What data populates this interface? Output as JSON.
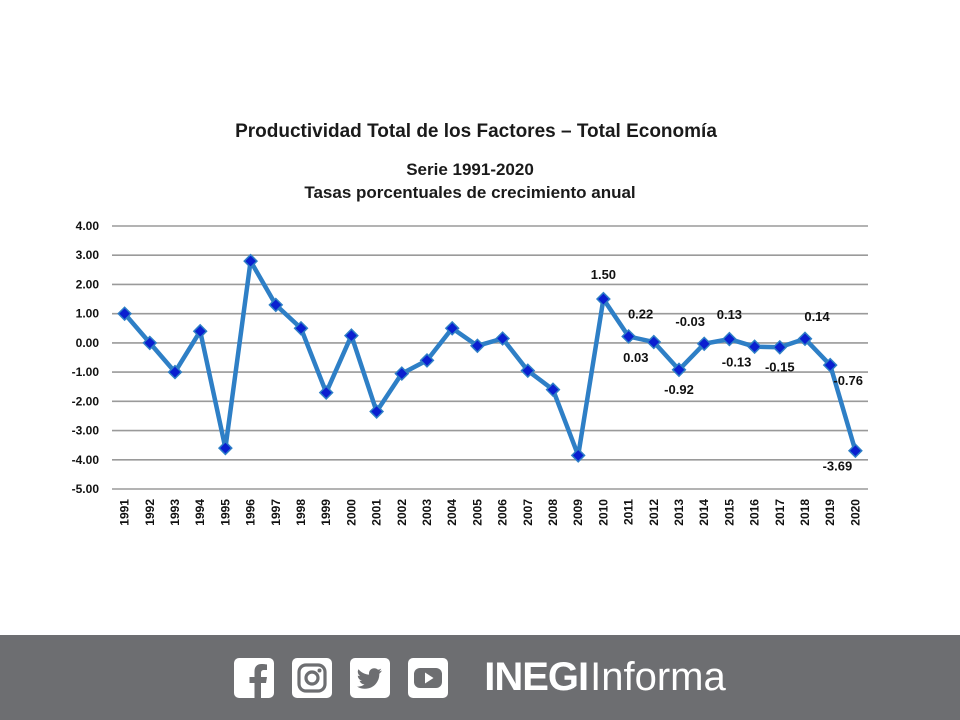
{
  "chart_data": {
    "type": "line",
    "title": "Productividad Total de los Factores – Total Economía",
    "subtitle_line1": "Serie 1991-2020",
    "subtitle_line2": "Tasas porcentuales de crecimiento anual",
    "xlabel": "",
    "ylabel": "",
    "ylim": [
      -5,
      4
    ],
    "yticks": [
      "4.00",
      "3.00",
      "2.00",
      "1.00",
      "0.00",
      "-1.00",
      "-2.00",
      "-3.00",
      "-4.00",
      "-5.00"
    ],
    "ytick_values": [
      4,
      3,
      2,
      1,
      0,
      -1,
      -2,
      -3,
      -4,
      -5
    ],
    "grid": true,
    "line_color": "#2e7fc6",
    "marker_color": "#0a1fd0",
    "categories": [
      "1991",
      "1992",
      "1993",
      "1994",
      "1995",
      "1996",
      "1997",
      "1998",
      "1999",
      "2000",
      "2001",
      "2002",
      "2003",
      "2004",
      "2005",
      "2006",
      "2007",
      "2008",
      "2009",
      "2010",
      "2011",
      "2012",
      "2013",
      "2014",
      "2015",
      "2016",
      "2017",
      "2018",
      "2019",
      "2020"
    ],
    "series": [
      {
        "values": [
          1.0,
          0.0,
          -1.0,
          0.4,
          -3.6,
          2.8,
          1.3,
          0.5,
          -1.7,
          0.25,
          -2.35,
          -1.05,
          -0.6,
          0.5,
          -0.1,
          0.15,
          -0.95,
          -1.6,
          -3.85,
          1.5,
          0.22,
          0.03,
          -0.92,
          -0.03,
          0.13,
          -0.13,
          -0.15,
          0.14,
          -0.76,
          -3.69
        ]
      }
    ],
    "data_labels": [
      {
        "index": 19,
        "text": "1.50",
        "pos": "above"
      },
      {
        "index": 20,
        "text": "0.22",
        "pos": "above-right"
      },
      {
        "index": 21,
        "text": "0.03",
        "pos": "below-left"
      },
      {
        "index": 22,
        "text": "-0.92",
        "pos": "below"
      },
      {
        "index": 23,
        "text": "-0.03",
        "pos": "above-left"
      },
      {
        "index": 24,
        "text": "0.13",
        "pos": "above"
      },
      {
        "index": 25,
        "text": "-0.13",
        "pos": "below-left"
      },
      {
        "index": 26,
        "text": "-0.15",
        "pos": "below"
      },
      {
        "index": 27,
        "text": "0.14",
        "pos": "above-right"
      },
      {
        "index": 28,
        "text": "-0.76",
        "pos": "below-right"
      },
      {
        "index": 29,
        "text": "-3.69",
        "pos": "below-left"
      }
    ]
  },
  "footer": {
    "background": "#6d6e71",
    "social_icons": [
      "facebook-icon",
      "instagram-icon",
      "twitter-icon",
      "youtube-icon"
    ],
    "brand_bold": "INEGI",
    "brand_light": "Informa"
  }
}
